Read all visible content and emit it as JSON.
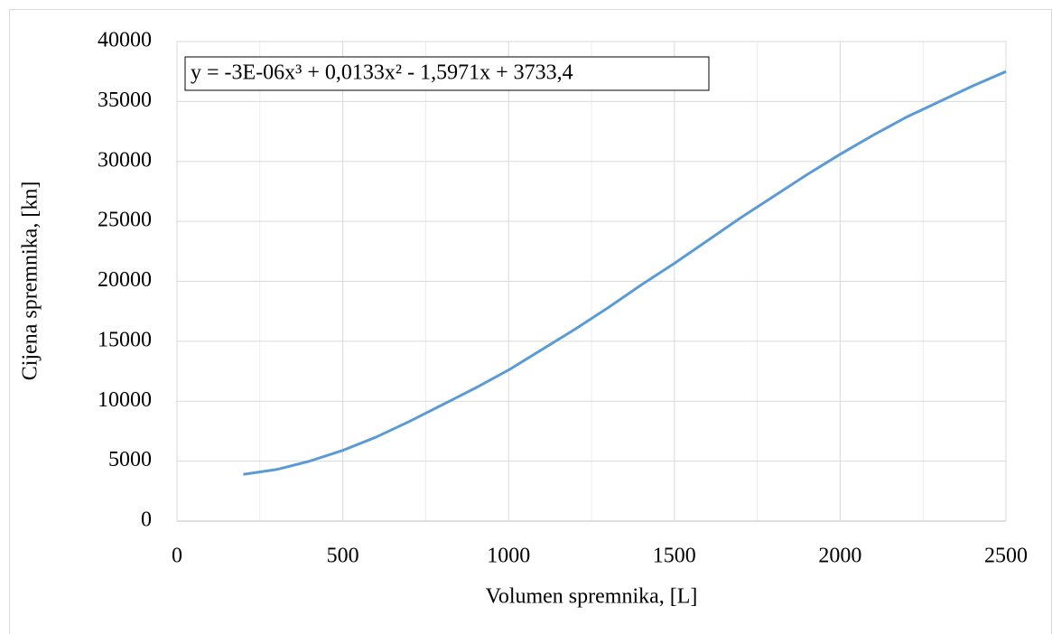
{
  "chart_data": {
    "type": "line",
    "xlabel": "Volumen spremnika, [L]",
    "ylabel": "Cijena spremnika, [kn]",
    "annotation": "y = -3E-06x³ + 0,0133x² - 1,5971x + 3733,4",
    "x": [
      200,
      300,
      400,
      500,
      600,
      700,
      800,
      900,
      1000,
      1100,
      1200,
      1300,
      1400,
      1500,
      1600,
      1700,
      1800,
      1900,
      2000,
      2100,
      2200,
      2300,
      2400,
      2500
    ],
    "series": [
      {
        "name": "Cijena",
        "color": "#5b9bd5",
        "values": [
          3900,
          4300,
          5000,
          5900,
          7000,
          8300,
          9700,
          11100,
          12600,
          14300,
          16000,
          17800,
          19700,
          21500,
          23400,
          25300,
          27100,
          28900,
          30600,
          32200,
          33700,
          35000,
          36300,
          37500
        ]
      }
    ],
    "xlim": [
      0,
      2500
    ],
    "xticks": [
      0,
      500,
      1000,
      1500,
      2000,
      2500
    ],
    "x_minor_ticks": [
      250,
      750,
      1250,
      1750,
      2250
    ],
    "ylim": [
      0,
      40000
    ],
    "yticks": [
      0,
      5000,
      10000,
      15000,
      20000,
      25000,
      30000,
      35000,
      40000
    ],
    "grid": true
  }
}
